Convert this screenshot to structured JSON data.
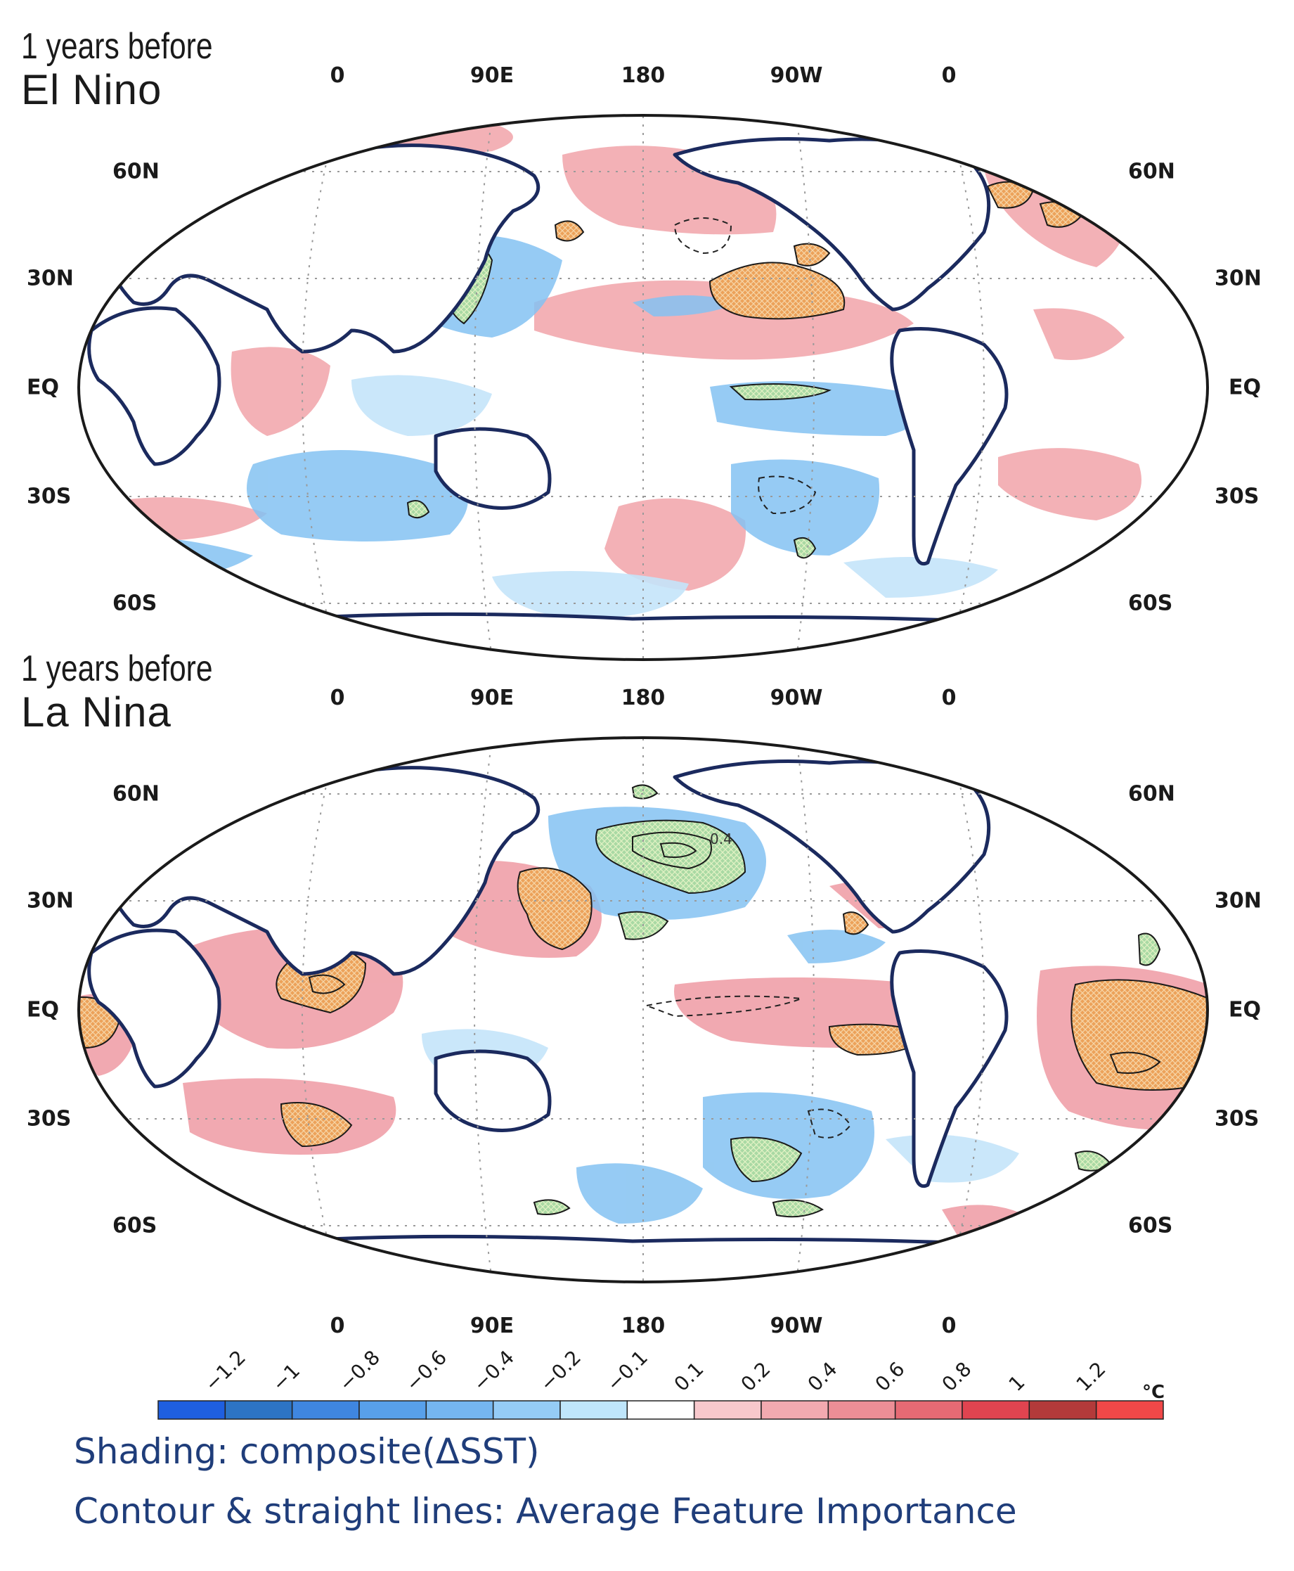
{
  "panels": [
    {
      "title_line1": "1 years before",
      "title_line2": "El Nino",
      "lon_labels": [
        "0",
        "90E",
        "180",
        "90W",
        "0"
      ],
      "lat_labels": [
        "60N",
        "30N",
        "EQ",
        "30S",
        "60S"
      ],
      "bottom_lon_labels": []
    },
    {
      "title_line1": "1 years before",
      "title_line2": "La Nina",
      "lon_labels": [
        "0",
        "90E",
        "180",
        "90W",
        "0"
      ],
      "lat_labels": [
        "60N",
        "30N",
        "EQ",
        "30S",
        "60S"
      ],
      "bottom_lon_labels": [
        "0",
        "90E",
        "180",
        "90W",
        "0"
      ],
      "contour_label": "0.4"
    }
  ],
  "colorbar": {
    "ticks": [
      "−1.2",
      "−1",
      "−0.8",
      "−0.6",
      "−0.4",
      "−0.2",
      "−0.1",
      "0.1",
      "0.2",
      "0.4",
      "0.6",
      "0.8",
      "1",
      "1.2"
    ],
    "unit": "°C",
    "colors": [
      "#1f5fe0",
      "#2d74c4",
      "#3f86e0",
      "#58a0ea",
      "#75b6f0",
      "#95ccf6",
      "#bfe6fb",
      "#ffffff",
      "#f8c8cc",
      "#f2aab0",
      "#ec8e96",
      "#e66a74",
      "#e04450",
      "#b33a3a",
      "#f04848"
    ]
  },
  "legend_lines": [
    "Shading: composite(ΔSST)",
    "Contour & straight lines: Average Feature Importance"
  ],
  "style": {
    "coast_color": "#1b2a5e",
    "warm_color": "#ee8e96",
    "warm_light": "#f6c2c6",
    "cool_color": "#7fbdf0",
    "cool_light": "#bfe2fa",
    "hatch_orange": "#eca25a",
    "hatch_green": "#a9d9a4"
  }
}
